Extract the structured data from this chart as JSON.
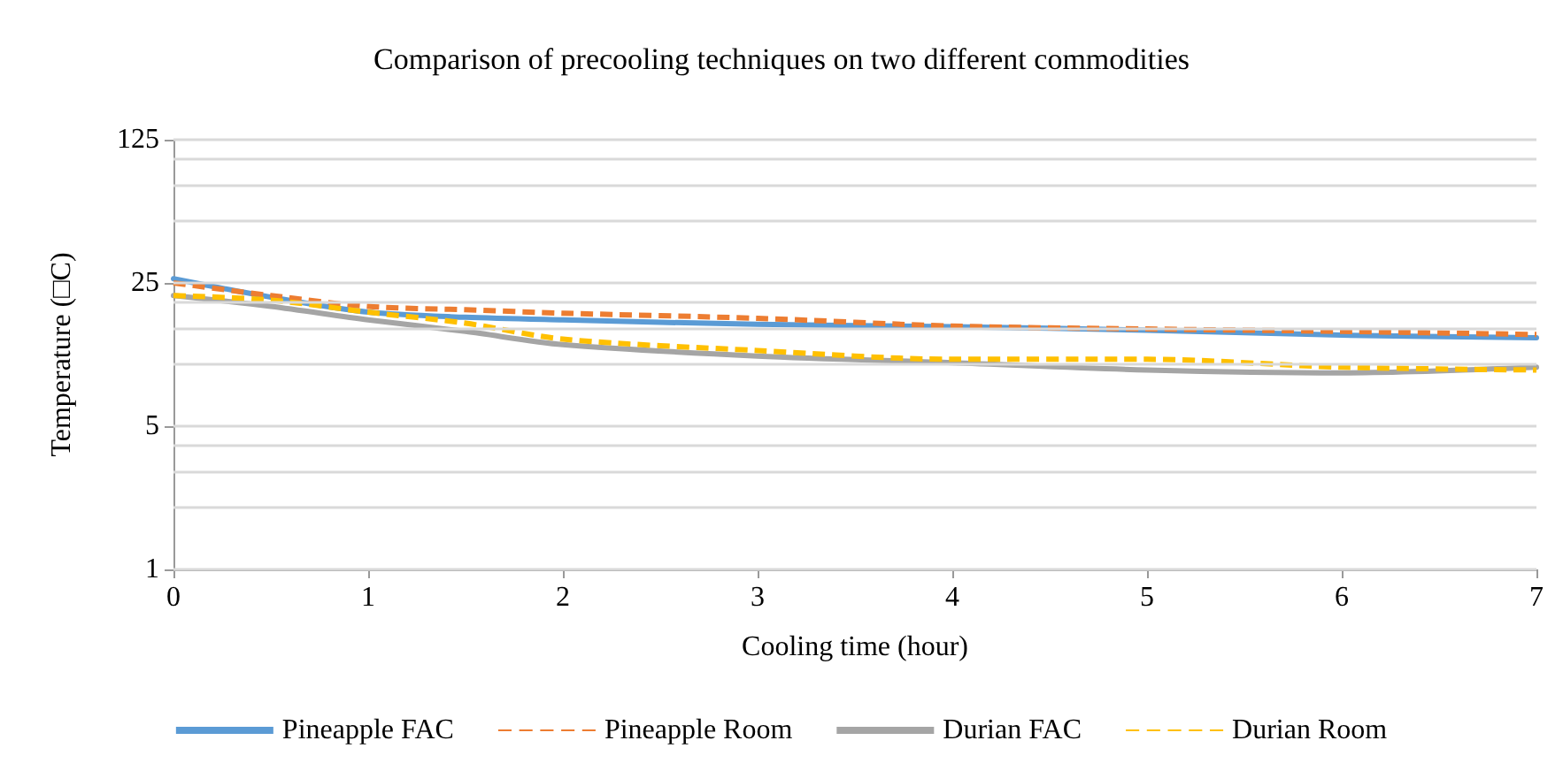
{
  "chart_data": {
    "type": "line",
    "title": "Comparison of precooling techniques on two different commodities",
    "xlabel": "Cooling time (hour)",
    "ylabel": "Temperature (□C)",
    "x": [
      0,
      0.5,
      1,
      1.5,
      2,
      3,
      4,
      5,
      6,
      7
    ],
    "series": [
      {
        "name": "Pineapple FAC",
        "color": "#5b9bd5",
        "line_style": "solid",
        "values": [
          26.2,
          21.3,
          18.0,
          17.0,
          16.5,
          15.7,
          15.3,
          14.7,
          13.9,
          13.5
        ]
      },
      {
        "name": "Pineapple Room",
        "color": "#ed7d31",
        "line_style": "dashed",
        "values": [
          25,
          21.7,
          19.2,
          18.5,
          17.8,
          16.8,
          15.4,
          14.9,
          14.5,
          14.0
        ]
      },
      {
        "name": "Durian FAC",
        "color": "#a5a5a5",
        "line_style": "solid",
        "values": [
          21.7,
          19.2,
          16.5,
          14.5,
          12.5,
          11.0,
          10.2,
          9.4,
          9.1,
          9.7
        ]
      },
      {
        "name": "Durian Room",
        "color": "#ffc000",
        "line_style": "dashed",
        "values": [
          21.7,
          20.6,
          18.0,
          15.9,
          13.3,
          11.7,
          10.6,
          10.6,
          9.7,
          9.4
        ]
      }
    ],
    "log": "y",
    "xlim": [
      0,
      7
    ],
    "xticks": [
      0,
      1,
      2,
      3,
      4,
      5,
      6,
      7
    ],
    "ylim": [
      1,
      125
    ],
    "yticks": [
      1,
      {
        "value": 2,
        "label": null
      },
      {
        "value": 3,
        "label": null
      },
      {
        "value": 4,
        "label": null
      },
      5,
      {
        "value": 10,
        "label": null
      },
      {
        "value": 15,
        "label": null
      },
      {
        "value": 20,
        "label": null
      },
      25,
      {
        "value": 50,
        "label": null
      },
      {
        "value": 75,
        "label": null
      },
      {
        "value": 100,
        "label": null
      },
      125
    ],
    "grid": "y",
    "legend": "bottom",
    "marker": "none"
  }
}
